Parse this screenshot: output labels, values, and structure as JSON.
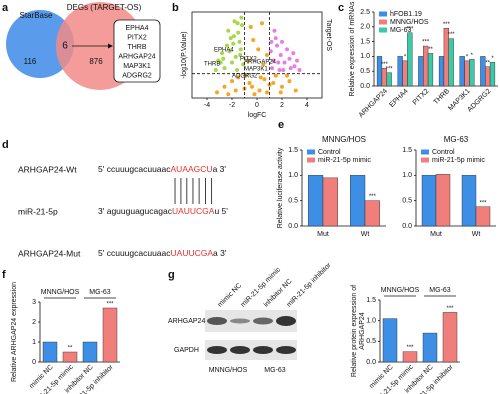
{
  "panel_labels": [
    "a",
    "b",
    "c",
    "d",
    "e",
    "f",
    "g"
  ],
  "venn": {
    "left": "StarBase",
    "right": "DEGs (TARGET-OS)",
    "left_only": 116,
    "overlap": 6,
    "right_only": 876,
    "genes": [
      "EPHA4",
      "PITX2",
      "THRB",
      "ARHGAP24",
      "MAP3K1",
      "ADGRG2"
    ]
  },
  "sequences": {
    "rows": [
      {
        "name": "ARHGAP24-Wt",
        "left": "5' ccuuugcacuuaac",
        "site": "AUAAGCU",
        "right": "a 3'"
      },
      {
        "name": "miR-21-5p",
        "left": "3' aguuguagucagac",
        "site": "UAUUCGA",
        "right": "u 5'"
      },
      {
        "name": "ARHGAP24-Mut",
        "left": "5' ccuuugcacuuaac",
        "site": "UAUUCGA",
        "right": "a 3'"
      }
    ]
  },
  "blot": {
    "rows": [
      "ARHGAP24",
      "GAPDH"
    ],
    "lanes": [
      "mimic NC",
      "miR-21-5p mimic",
      "inhibitor NC",
      "miR-21-5p inhibitor"
    ],
    "cell_lines": [
      "MNNG/HOS",
      "MG-63"
    ]
  },
  "chart_data": [
    {
      "type": "scatter",
      "xlabel": "logFC",
      "ylabel": "-log10(P.Value)",
      "side_label": "Target-OS",
      "xlim": [
        -5.2,
        5.2
      ],
      "xticks": [
        -4,
        -2,
        0,
        2,
        4
      ],
      "ylim": [
        0,
        4.6
      ],
      "vlines": [
        -1,
        1
      ],
      "hline": 1.3,
      "annotations": [
        "EPHA4",
        "PITX2",
        "ARHGAP24",
        "THRB",
        "MAP3K1",
        "ADGRG2"
      ],
      "series": [
        {
          "color": "#f5a623",
          "x": [
            -3.2,
            -2.6,
            -2.0,
            -1.5,
            -1.0,
            -0.6,
            -0.2,
            0.2,
            0.6,
            1.0,
            1.5,
            2.0,
            2.6,
            3.1,
            -2.3,
            -1.7,
            -0.9,
            -0.4,
            0.3,
            0.8,
            1.3,
            1.9,
            2.4,
            -0.7,
            -0.3,
            0.1,
            0.5,
            0.8,
            -0.5,
            0.4
          ],
          "values": [
            0.3,
            0.6,
            0.9,
            1.1,
            0.5,
            0.8,
            0.2,
            0.4,
            1.0,
            0.7,
            1.2,
            0.6,
            0.9,
            0.4,
            0.2,
            0.4,
            1.2,
            0.6,
            1.1,
            0.3,
            0.8,
            0.3,
            1.2,
            2.0,
            3.1,
            2.6,
            1.8,
            2.3,
            3.8,
            4.0
          ]
        },
        {
          "color": "#a6d84a",
          "x": [
            -1.2,
            -1.5,
            -1.8,
            -2.1,
            -2.4,
            -2.8,
            -3.1,
            -1.3,
            -1.7,
            -2.0,
            -2.6,
            -3.3,
            -1.1,
            -1.4,
            -1.9,
            -2.3,
            -2.9,
            -1.6,
            -2.2,
            -1.25,
            -1.55,
            -2.7,
            -1.35,
            -1.85
          ],
          "values": [
            3.9,
            3.5,
            4.1,
            3.2,
            2.8,
            2.4,
            2.0,
            2.6,
            2.2,
            1.9,
            1.6,
            1.5,
            1.8,
            3.0,
            2.9,
            3.6,
            1.9,
            1.5,
            2.5,
            4.3,
            4.0,
            2.1,
            2.3,
            3.3
          ]
        },
        {
          "color": "#e77ee6",
          "x": [
            1.1,
            1.3,
            1.6,
            1.9,
            2.2,
            2.6,
            3.0,
            3.4,
            1.2,
            1.5,
            1.8,
            2.4,
            2.9,
            1.4,
            2.0,
            1.7,
            2.7,
            1.15,
            3.2,
            2.1
          ],
          "values": [
            2.5,
            2.0,
            2.8,
            2.3,
            1.9,
            2.1,
            1.7,
            1.5,
            1.6,
            3.2,
            1.5,
            2.6,
            2.4,
            3.6,
            3.0,
            1.9,
            1.6,
            3.0,
            2.0,
            1.5
          ]
        }
      ]
    },
    {
      "type": "bar",
      "ylabel": "Relative expression of mRNAs",
      "legend": "upper left",
      "xtick_rotation": -45,
      "categories": [
        "ARHGAP24",
        "EPHA4",
        "PITX2",
        "THRB",
        "MAP3K1",
        "ADGRG2"
      ],
      "ylim": [
        0,
        2.5
      ],
      "yticks": [
        {
          "value": 0,
          "label": "0.0"
        },
        {
          "value": 0.5,
          "label": "0.5"
        },
        {
          "value": 1,
          "label": "1.0"
        },
        {
          "value": 1.5,
          "label": "1.5"
        },
        {
          "value": 2,
          "label": "2.0"
        },
        {
          "value": 2.5,
          "label": "2.5"
        }
      ],
      "series": [
        {
          "name": "hFOB1.19",
          "color": "#3d8fe6",
          "values": [
            1,
            1,
            1,
            1,
            1,
            1
          ]
        },
        {
          "name": "MNNG/HOS",
          "color": "#f07f7c",
          "values": [
            0.6,
            0.85,
            1.35,
            1.95,
            0.85,
            0.65
          ],
          "stars": [
            "***",
            "*",
            "***",
            "***",
            "*",
            "**"
          ]
        },
        {
          "name": "MG-63",
          "color": "#3cc9a7",
          "values": [
            0.45,
            1.8,
            1.1,
            1.6,
            0.9,
            0.8
          ],
          "stars": [
            "***",
            "***",
            "**",
            "***",
            "*",
            "*"
          ]
        }
      ]
    },
    {
      "type": "bar",
      "title": "MNNG/HOS",
      "ylabel": "Relative luciferase activity",
      "legend": "upper left",
      "categories": [
        "Mut",
        "Wt"
      ],
      "ylim": [
        0,
        1.5
      ],
      "yticks": [
        {
          "value": 0,
          "label": "0.0"
        },
        {
          "value": 0.5,
          "label": "0.5"
        },
        {
          "value": 1,
          "label": "1.0"
        },
        {
          "value": 1.5,
          "label": "1.5"
        }
      ],
      "series": [
        {
          "name": "Control",
          "color": "#3d8fe6",
          "values": [
            1,
            1
          ]
        },
        {
          "name": "miR-21-5p mimic",
          "color": "#f07f7c",
          "values": [
            0.95,
            0.5
          ],
          "stars": [
            null,
            "***"
          ]
        }
      ]
    },
    {
      "type": "bar",
      "title": "MG-63",
      "legend": "upper left",
      "categories": [
        "Mut",
        "Wt"
      ],
      "ylim": [
        0,
        1.5
      ],
      "yticks": [
        {
          "value": 0,
          "label": "0.0"
        },
        {
          "value": 0.5,
          "label": "0.5"
        },
        {
          "value": 1,
          "label": "1.0"
        },
        {
          "value": 1.5,
          "label": "1.5"
        }
      ],
      "series": [
        {
          "name": "Control",
          "color": "#3d8fe6",
          "values": [
            1,
            1
          ]
        },
        {
          "name": "miR-21-5p mimic",
          "color": "#f07f7c",
          "values": [
            1.02,
            0.38
          ],
          "stars": [
            null,
            "***"
          ]
        }
      ]
    },
    {
      "type": "bar",
      "ylabel": "Relative ARHGAP24 expression",
      "xtick_rotation": -45,
      "groups": [
        "MNNG/HOS",
        "MG-63"
      ],
      "categories": [
        "mimic NC",
        "miR-21-5p mimic",
        "inhibitor NC",
        "miR-21-5p inhibitor"
      ],
      "ylim": [
        0,
        3
      ],
      "yticks": [
        0,
        1,
        2,
        3
      ],
      "series": [
        {
          "colors": [
            "#3d8fe6",
            "#f07f7c",
            "#3d8fe6",
            "#f07f7c"
          ],
          "values": [
            1.0,
            0.5,
            1.0,
            2.7
          ],
          "stars": [
            null,
            "**",
            null,
            "***"
          ]
        }
      ]
    },
    {
      "type": "bar",
      "ylabel": [
        "Relative protein expression of",
        "ARHGAP24"
      ],
      "xtick_rotation": -45,
      "groups": [
        "MNNG/HOS",
        "MG-63"
      ],
      "categories": [
        "mimic NC",
        "miR-21-5p mimic",
        "inhibitor NC",
        "miR-21-5p inhibitor"
      ],
      "ylim": [
        0,
        1.5
      ],
      "yticks": [
        {
          "value": 0,
          "label": "0.0"
        },
        {
          "value": 0.5,
          "label": "0.5"
        },
        {
          "value": 1,
          "label": "1.0"
        },
        {
          "value": 1.5,
          "label": "1.5"
        }
      ],
      "series": [
        {
          "colors": [
            "#3d8fe6",
            "#f07f7c",
            "#3d8fe6",
            "#f07f7c"
          ],
          "values": [
            1.05,
            0.25,
            0.7,
            1.2
          ],
          "stars": [
            null,
            "***",
            null,
            "***"
          ]
        }
      ]
    }
  ]
}
